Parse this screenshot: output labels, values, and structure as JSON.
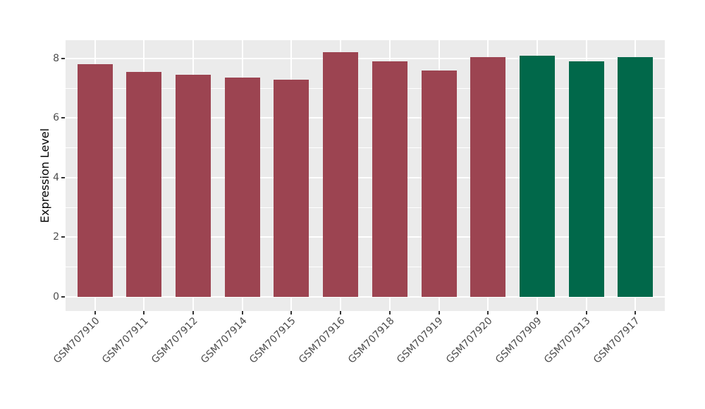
{
  "chart_data": {
    "type": "bar",
    "title": "",
    "xlabel": "",
    "ylabel": "Expression Level",
    "categories": [
      "GSM707910",
      "GSM707911",
      "GSM707912",
      "GSM707914",
      "GSM707915",
      "GSM707916",
      "GSM707918",
      "GSM707919",
      "GSM707920",
      "GSM707909",
      "GSM707913",
      "GSM707917"
    ],
    "values": [
      7.8,
      7.55,
      7.45,
      7.35,
      7.3,
      8.2,
      7.9,
      7.6,
      8.05,
      8.1,
      7.9,
      8.05
    ],
    "bar_colors": [
      "#9C4451",
      "#9C4451",
      "#9C4451",
      "#9C4451",
      "#9C4451",
      "#9C4451",
      "#9C4451",
      "#9C4451",
      "#9C4451",
      "#01684A",
      "#01684A",
      "#01684A"
    ],
    "group_colors": {
      "maroon": "#9C4451",
      "green": "#01684A"
    },
    "ylim": [
      0,
      8.61
    ],
    "yticks": [
      0,
      2,
      4,
      6,
      8
    ],
    "yticks_minor": [
      1,
      3,
      5,
      7
    ],
    "x_tick_rotation": 45,
    "legend_position": "none",
    "grid": "on",
    "panel_background": "#EBEBEB",
    "grid_color": "#FFFFFF",
    "tick_mark_color": "#333333",
    "tick_label_color": "#4D4D4D",
    "axis_title_color": "#000000"
  }
}
